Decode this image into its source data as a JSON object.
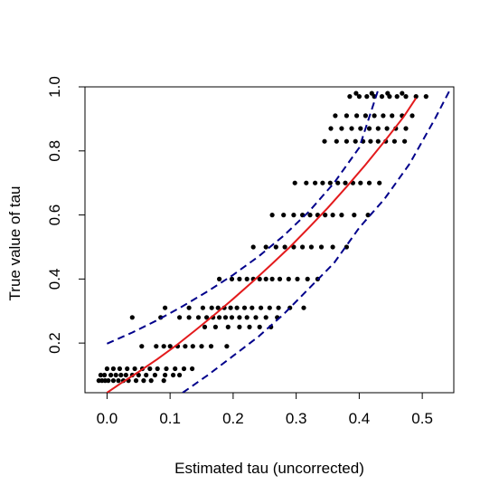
{
  "chart_data": {
    "type": "scatter",
    "title": "",
    "xlabel": "Estimated tau (uncorrected)",
    "ylabel": "True value of tau",
    "xlim": [
      -0.035,
      0.55
    ],
    "ylim": [
      0.045,
      1.0
    ],
    "xticks": [
      0.0,
      0.1,
      0.2,
      0.3,
      0.4,
      0.5
    ],
    "xtick_labels": [
      "0.0",
      "0.1",
      "0.2",
      "0.3",
      "0.4",
      "0.5"
    ],
    "yticks": [
      0.2,
      0.4,
      0.6,
      0.8,
      1.0
    ],
    "ytick_labels": [
      "0.2",
      "0.4",
      "0.6",
      "0.8",
      "1.0"
    ],
    "grid": false,
    "legend": "none",
    "series": [
      {
        "kind": "points",
        "color": "#000000",
        "points": [
          [
            -0.013,
            0.083
          ],
          [
            -0.008,
            0.083
          ],
          [
            -0.003,
            0.083
          ],
          [
            0.002,
            0.083
          ],
          [
            0.01,
            0.083
          ],
          [
            0.018,
            0.083
          ],
          [
            0.026,
            0.083
          ],
          [
            0.034,
            0.083
          ],
          [
            0.046,
            0.083
          ],
          [
            0.058,
            0.083
          ],
          [
            0.07,
            0.083
          ],
          [
            0.09,
            0.083
          ],
          [
            -0.01,
            0.1
          ],
          [
            -0.004,
            0.1
          ],
          [
            0.006,
            0.1
          ],
          [
            0.014,
            0.1
          ],
          [
            0.022,
            0.1
          ],
          [
            0.03,
            0.1
          ],
          [
            0.04,
            0.1
          ],
          [
            0.05,
            0.1
          ],
          [
            0.062,
            0.1
          ],
          [
            0.076,
            0.1
          ],
          [
            0.092,
            0.1
          ],
          [
            0.105,
            0.1
          ],
          [
            0.115,
            0.1
          ],
          [
            0.0,
            0.12
          ],
          [
            0.01,
            0.12
          ],
          [
            0.02,
            0.12
          ],
          [
            0.032,
            0.12
          ],
          [
            0.044,
            0.12
          ],
          [
            0.056,
            0.12
          ],
          [
            0.068,
            0.12
          ],
          [
            0.08,
            0.12
          ],
          [
            0.094,
            0.12
          ],
          [
            0.108,
            0.12
          ],
          [
            0.122,
            0.12
          ],
          [
            0.135,
            0.12
          ],
          [
            0.055,
            0.19
          ],
          [
            0.078,
            0.19
          ],
          [
            0.09,
            0.19
          ],
          [
            0.1,
            0.19
          ],
          [
            0.112,
            0.19
          ],
          [
            0.124,
            0.19
          ],
          [
            0.136,
            0.19
          ],
          [
            0.15,
            0.19
          ],
          [
            0.165,
            0.19
          ],
          [
            0.19,
            0.19
          ],
          [
            0.04,
            0.28
          ],
          [
            0.085,
            0.28
          ],
          [
            0.115,
            0.28
          ],
          [
            0.13,
            0.28
          ],
          [
            0.145,
            0.28
          ],
          [
            0.158,
            0.28
          ],
          [
            0.168,
            0.28
          ],
          [
            0.178,
            0.28
          ],
          [
            0.188,
            0.28
          ],
          [
            0.198,
            0.28
          ],
          [
            0.21,
            0.28
          ],
          [
            0.222,
            0.28
          ],
          [
            0.236,
            0.28
          ],
          [
            0.252,
            0.28
          ],
          [
            0.27,
            0.28
          ],
          [
            0.092,
            0.31
          ],
          [
            0.13,
            0.31
          ],
          [
            0.152,
            0.31
          ],
          [
            0.166,
            0.31
          ],
          [
            0.176,
            0.31
          ],
          [
            0.186,
            0.31
          ],
          [
            0.196,
            0.31
          ],
          [
            0.206,
            0.31
          ],
          [
            0.218,
            0.31
          ],
          [
            0.23,
            0.31
          ],
          [
            0.244,
            0.31
          ],
          [
            0.258,
            0.31
          ],
          [
            0.272,
            0.31
          ],
          [
            0.29,
            0.31
          ],
          [
            0.312,
            0.31
          ],
          [
            0.155,
            0.25
          ],
          [
            0.172,
            0.25
          ],
          [
            0.192,
            0.25
          ],
          [
            0.21,
            0.25
          ],
          [
            0.226,
            0.25
          ],
          [
            0.242,
            0.25
          ],
          [
            0.26,
            0.25
          ],
          [
            0.178,
            0.4
          ],
          [
            0.198,
            0.4
          ],
          [
            0.21,
            0.4
          ],
          [
            0.222,
            0.4
          ],
          [
            0.232,
            0.4
          ],
          [
            0.242,
            0.4
          ],
          [
            0.252,
            0.4
          ],
          [
            0.262,
            0.4
          ],
          [
            0.274,
            0.4
          ],
          [
            0.288,
            0.4
          ],
          [
            0.302,
            0.4
          ],
          [
            0.318,
            0.4
          ],
          [
            0.334,
            0.4
          ],
          [
            0.232,
            0.5
          ],
          [
            0.252,
            0.5
          ],
          [
            0.268,
            0.5
          ],
          [
            0.282,
            0.5
          ],
          [
            0.296,
            0.5
          ],
          [
            0.31,
            0.5
          ],
          [
            0.324,
            0.5
          ],
          [
            0.34,
            0.5
          ],
          [
            0.358,
            0.5
          ],
          [
            0.38,
            0.5
          ],
          [
            0.262,
            0.6
          ],
          [
            0.28,
            0.6
          ],
          [
            0.296,
            0.6
          ],
          [
            0.31,
            0.6
          ],
          [
            0.322,
            0.6
          ],
          [
            0.334,
            0.6
          ],
          [
            0.346,
            0.6
          ],
          [
            0.358,
            0.6
          ],
          [
            0.372,
            0.6
          ],
          [
            0.392,
            0.6
          ],
          [
            0.414,
            0.6
          ],
          [
            0.298,
            0.7
          ],
          [
            0.316,
            0.7
          ],
          [
            0.33,
            0.7
          ],
          [
            0.342,
            0.7
          ],
          [
            0.354,
            0.7
          ],
          [
            0.366,
            0.7
          ],
          [
            0.378,
            0.7
          ],
          [
            0.39,
            0.7
          ],
          [
            0.402,
            0.7
          ],
          [
            0.416,
            0.7
          ],
          [
            0.432,
            0.7
          ],
          [
            0.345,
            0.83
          ],
          [
            0.364,
            0.83
          ],
          [
            0.38,
            0.83
          ],
          [
            0.394,
            0.83
          ],
          [
            0.406,
            0.83
          ],
          [
            0.418,
            0.83
          ],
          [
            0.43,
            0.83
          ],
          [
            0.442,
            0.83
          ],
          [
            0.456,
            0.83
          ],
          [
            0.472,
            0.83
          ],
          [
            0.355,
            0.87
          ],
          [
            0.372,
            0.87
          ],
          [
            0.388,
            0.87
          ],
          [
            0.402,
            0.87
          ],
          [
            0.416,
            0.87
          ],
          [
            0.43,
            0.87
          ],
          [
            0.444,
            0.87
          ],
          [
            0.458,
            0.87
          ],
          [
            0.474,
            0.87
          ],
          [
            0.362,
            0.91
          ],
          [
            0.38,
            0.91
          ],
          [
            0.396,
            0.91
          ],
          [
            0.41,
            0.91
          ],
          [
            0.424,
            0.91
          ],
          [
            0.438,
            0.91
          ],
          [
            0.452,
            0.91
          ],
          [
            0.468,
            0.91
          ],
          [
            0.484,
            0.91
          ],
          [
            0.385,
            0.97
          ],
          [
            0.4,
            0.97
          ],
          [
            0.412,
            0.97
          ],
          [
            0.424,
            0.97
          ],
          [
            0.436,
            0.97
          ],
          [
            0.448,
            0.97
          ],
          [
            0.46,
            0.97
          ],
          [
            0.474,
            0.97
          ],
          [
            0.49,
            0.97
          ],
          [
            0.506,
            0.97
          ],
          [
            0.395,
            0.98
          ],
          [
            0.42,
            0.98
          ],
          [
            0.445,
            0.98
          ],
          [
            0.468,
            0.98
          ]
        ]
      },
      {
        "kind": "line",
        "style": "solid",
        "color": "#e31a1c",
        "x": [
          0.0,
          0.02,
          0.05,
          0.08,
          0.11,
          0.14,
          0.17,
          0.2,
          0.23,
          0.26,
          0.29,
          0.32,
          0.35,
          0.38,
          0.41,
          0.44,
          0.47,
          0.49
        ],
        "y": [
          0.045,
          0.072,
          0.11,
          0.15,
          0.193,
          0.24,
          0.288,
          0.338,
          0.39,
          0.444,
          0.5,
          0.56,
          0.622,
          0.688,
          0.757,
          0.83,
          0.905,
          0.965
        ]
      },
      {
        "kind": "line",
        "style": "dashed",
        "color": "#00008b",
        "x": [
          0.0,
          0.04,
          0.08,
          0.12,
          0.16,
          0.2,
          0.24,
          0.28,
          0.32,
          0.36,
          0.4,
          0.43
        ],
        "y": [
          0.198,
          0.233,
          0.272,
          0.315,
          0.362,
          0.413,
          0.47,
          0.535,
          0.61,
          0.7,
          0.81,
          0.99
        ]
      },
      {
        "kind": "line",
        "style": "dashed",
        "color": "#00008b",
        "x": [
          0.12,
          0.16,
          0.2,
          0.24,
          0.28,
          0.32,
          0.36,
          0.4,
          0.44,
          0.48,
          0.52,
          0.545
        ],
        "y": [
          0.045,
          0.1,
          0.16,
          0.22,
          0.29,
          0.37,
          0.45,
          0.56,
          0.65,
          0.76,
          0.9,
          0.995
        ]
      }
    ]
  }
}
